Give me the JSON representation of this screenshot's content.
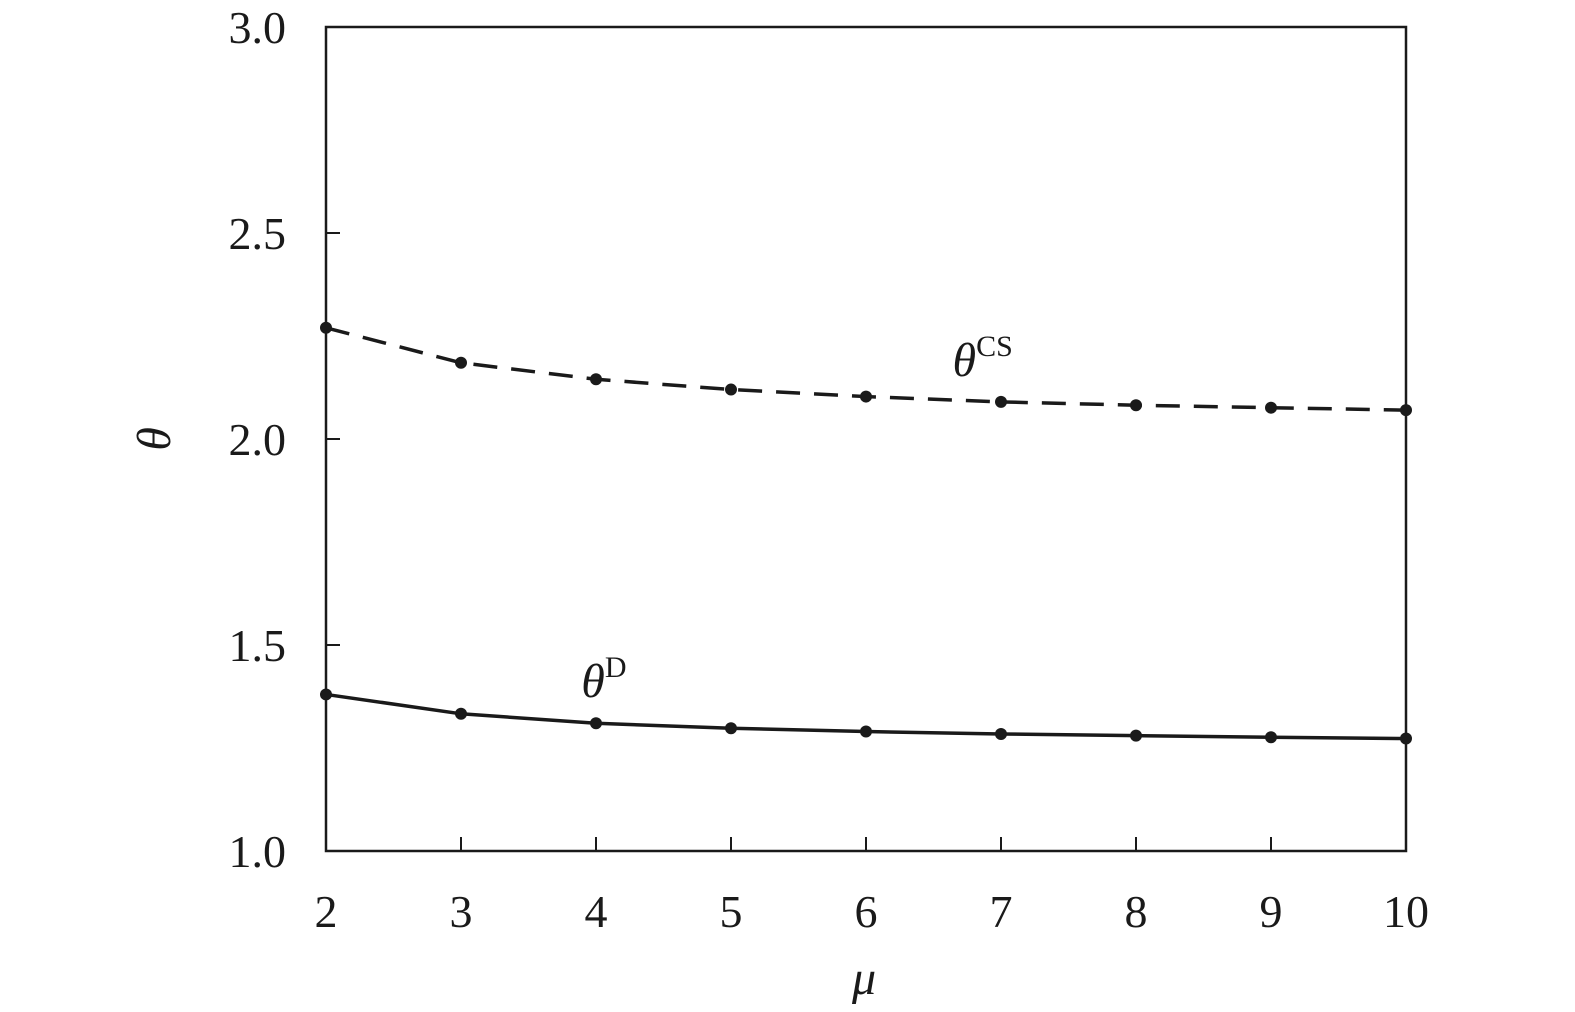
{
  "chart_data": {
    "type": "line",
    "title": "",
    "xlabel": "μ",
    "ylabel": "θ",
    "xlim": [
      2,
      10
    ],
    "ylim": [
      1.0,
      3.0
    ],
    "xticks": [
      "2",
      "3",
      "4",
      "5",
      "6",
      "7",
      "8",
      "9",
      "10"
    ],
    "yticks": [
      "1.0",
      "1.5",
      "2.0",
      "2.5",
      "3.0"
    ],
    "grid": false,
    "x": [
      2,
      3,
      4,
      5,
      6,
      7,
      8,
      9,
      10
    ],
    "series": [
      {
        "name": "θ^CS",
        "symbol": "θ",
        "superscript": "CS",
        "style": "dashed",
        "color": "#1a1a1a",
        "values": [
          2.27,
          2.185,
          2.145,
          2.12,
          2.103,
          2.09,
          2.082,
          2.076,
          2.07
        ]
      },
      {
        "name": "θ^D",
        "symbol": "θ",
        "superscript": "D",
        "style": "solid",
        "color": "#1a1a1a",
        "values": [
          1.38,
          1.333,
          1.31,
          1.298,
          1.29,
          1.284,
          1.28,
          1.276,
          1.273
        ]
      }
    ]
  }
}
